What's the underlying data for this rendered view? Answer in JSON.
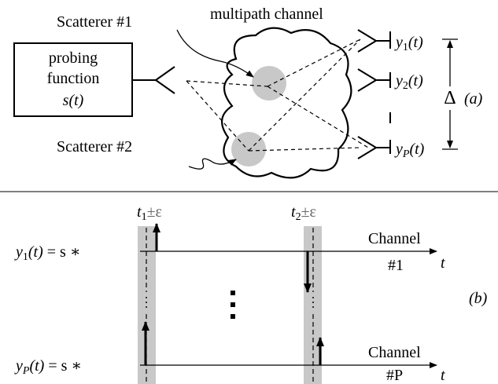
{
  "panel_a": {
    "scatterer_1": "Scatterer #1",
    "scatterer_2": "Scatterer #2",
    "channel": "multipath channel",
    "source": {
      "lines": [
        "probing",
        "function"
      ],
      "signal": {
        "name": "s",
        "arg": "(t)"
      }
    },
    "receivers": [
      {
        "name": "y",
        "index": "1",
        "arg": "(t)"
      },
      {
        "name": "y",
        "index": "2",
        "arg": "(t)"
      },
      {
        "name": "y",
        "index": "P",
        "arg": "(t)"
      }
    ],
    "spacing": "Δ",
    "label": "(a)"
  },
  "panel_b": {
    "windows": [
      {
        "name": "t",
        "index": "1",
        "tolerance": "±ε"
      },
      {
        "name": "t",
        "index": "2",
        "tolerance": "±ε"
      }
    ],
    "rows": [
      {
        "output": {
          "name": "y",
          "index": "1",
          "arg": "(t)"
        },
        "equation": " = s ∗",
        "channel": "Channel",
        "channel_id": "#1",
        "axis": "t"
      },
      {
        "output": {
          "name": "y",
          "index": "P",
          "arg": "(t)"
        },
        "equation": " = s ∗",
        "channel": "Channel",
        "channel_id": "#P",
        "axis": "t"
      }
    ],
    "label": "(b)"
  }
}
